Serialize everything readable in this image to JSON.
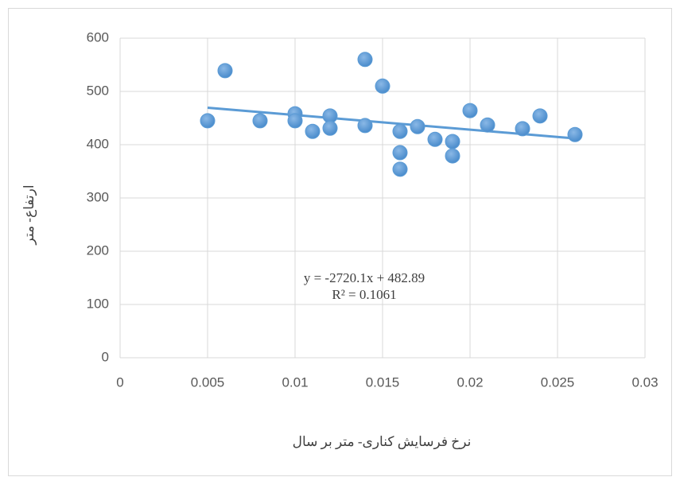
{
  "chart_data": {
    "type": "scatter",
    "x_label": "نرخ فرسایش کناری- متر بر سال",
    "y_label": "ارتفاع- متر",
    "series": [
      {
        "color": "#5b9bd5",
        "x": [
          0.005,
          0.006,
          0.008,
          0.01,
          0.01,
          0.011,
          0.012,
          0.012,
          0.014,
          0.014,
          0.015,
          0.016,
          0.016,
          0.016,
          0.017,
          0.018,
          0.019,
          0.019,
          0.02,
          0.021,
          0.023,
          0.024,
          0.026
        ],
        "values": [
          445,
          539,
          445,
          458,
          445,
          425,
          454,
          431,
          560,
          436,
          510,
          425,
          385,
          354,
          434,
          410,
          406,
          379,
          464,
          437,
          430,
          454,
          419
        ]
      }
    ],
    "trendline": {
      "type": "linear",
      "equation": "y = -2720.1x + 482.89",
      "r_squared": "R² = 0.1061"
    },
    "xlim": [
      0,
      0.03
    ],
    "xticks": [
      0,
      0.005,
      0.01,
      0.015,
      0.02,
      0.025,
      0.03
    ],
    "ylim": [
      0,
      600
    ],
    "yticks": [
      0,
      100,
      200,
      300,
      400,
      500,
      600
    ],
    "grid": true
  }
}
